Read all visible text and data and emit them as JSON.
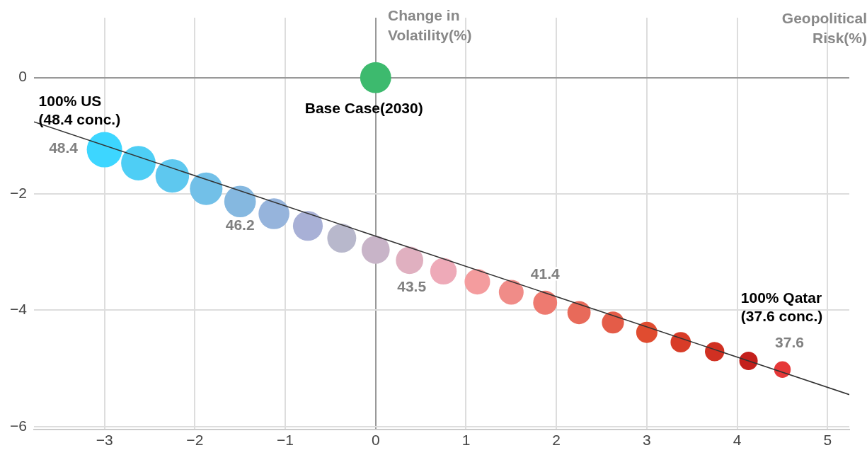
{
  "chart_data": {
    "type": "bubble",
    "xlabel": "Geopolitical Risk(%)",
    "ylabel": "Change in Volatility(%)",
    "xlim": [
      -3.78,
      5.24
    ],
    "ylim": [
      -6.05,
      1.03
    ],
    "xticks": [
      {
        "value": -3,
        "label": "−3"
      },
      {
        "value": -2,
        "label": "−2"
      },
      {
        "value": -1,
        "label": "−1"
      },
      0,
      1,
      2,
      3,
      4,
      5
    ],
    "yticks": [
      {
        "value": -6,
        "label": "−6"
      },
      {
        "value": -4,
        "label": "−4"
      },
      {
        "value": -2,
        "label": "−2"
      },
      0
    ],
    "grid": true,
    "legend": false,
    "marker": "circle",
    "series": [
      {
        "x": [
          -3,
          -2.625,
          -2.25,
          -1.875,
          -1.5,
          -1.125,
          -0.75,
          -0.375,
          0,
          0.375,
          0.75,
          1.125,
          1.5,
          1.875,
          2.25,
          2.625,
          3,
          3.375,
          3.75,
          4.125,
          4.5
        ],
        "values": [
          -1.24,
          -1.47,
          -1.69,
          -1.91,
          -2.13,
          -2.34,
          -2.55,
          -2.76,
          -2.96,
          -3.14,
          -3.33,
          -3.51,
          -3.69,
          -3.87,
          -4.04,
          -4.21,
          -4.38,
          -4.55,
          -4.71,
          -4.87,
          -5.02
        ],
        "sizes": [
          1,
          0.95,
          0.9,
          0.85,
          0.8,
          0.76,
          0.71,
          0.67,
          0.63,
          0.6,
          0.56,
          0.52,
          0.49,
          0.46,
          0.43,
          0.39,
          0.36,
          0.33,
          0.3,
          0.27,
          0.22
        ],
        "colors": [
          "#3dd6ff",
          "#4ecef5",
          "#5ec8ef",
          "#72c0e8",
          "#85b8e0",
          "#96b4dc",
          "#a8b0d6",
          "#b8b8cc",
          "#c8b4c8",
          "#e0b0c0",
          "#eeaab8",
          "#f49c9e",
          "#f08c88",
          "#ee7a70",
          "#e86a5a",
          "#e45c48",
          "#e04c30",
          "#d83c28",
          "#d03022",
          "#c4201c",
          "#e63838"
        ],
        "marker": "circle"
      },
      {
        "x": [
          0
        ],
        "values": [
          0
        ],
        "sizes": [
          0.77
        ],
        "color": "#3dba6e"
      },
      {
        "type": "line",
        "x": [
          -3.78,
          5.24
        ],
        "values": [
          -0.76,
          -5.45
        ],
        "color": "#333333",
        "marker": "none",
        "line_style": "solid"
      }
    ],
    "annotations": [
      {
        "text": "100% US\n(48.4 conc.)",
        "x": -3,
        "y": -1.24
      },
      {
        "text": "Base Case(2030)",
        "x": 0,
        "y": 0
      },
      "100% Qatar\n(37.6 conc.)",
      {
        "text": "48.4",
        "x": -3,
        "y": -1.24
      },
      {
        "text": "46.2",
        "x": -1.5,
        "y": -2.13
      },
      {
        "text": "43.5",
        "x": 0.375,
        "y": -3.14
      },
      {
        "text": "41.4",
        "x": 1.875,
        "y": -3.87
      },
      {
        "text": "37.6",
        "x": 4.5,
        "y": -5.02
      }
    ]
  }
}
